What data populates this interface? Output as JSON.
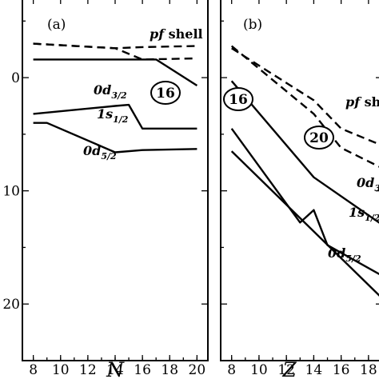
{
  "chart_data": [
    {
      "type": "line",
      "panel_label": "(a)",
      "xlabel": "N",
      "ylabel": "",
      "xlim": [
        7.2,
        20.8
      ],
      "ylim": [
        -7,
        25
      ],
      "y_inverted": true,
      "x_ticks": [
        8,
        10,
        12,
        14,
        16,
        18,
        20
      ],
      "y_ticks": [
        0,
        10,
        20
      ],
      "grid": false,
      "series": [
        {
          "name": "pf shell",
          "style": "dashed",
          "x": [
            8,
            14,
            16,
            20
          ],
          "y": [
            -3.0,
            -2.6,
            -1.6,
            -1.7
          ]
        },
        {
          "name": "pf shell",
          "style": "dashed",
          "x": [
            8,
            14,
            16,
            20
          ],
          "y": [
            -3.0,
            -2.6,
            -2.7,
            -2.8
          ]
        },
        {
          "name": "0d3/2",
          "style": "solid",
          "x": [
            8,
            17,
            20
          ],
          "y": [
            -1.6,
            -1.6,
            0.7
          ]
        },
        {
          "name": "1s1/2",
          "style": "solid",
          "x": [
            8,
            14,
            15,
            16,
            20
          ],
          "y": [
            3.2,
            2.5,
            2.4,
            4.5,
            4.5
          ]
        },
        {
          "name": "0d5/2",
          "style": "solid",
          "x": [
            8,
            9,
            14,
            16,
            20
          ],
          "y": [
            4.0,
            4.0,
            6.6,
            6.4,
            6.3
          ]
        }
      ],
      "annotations": [
        {
          "kind": "label",
          "parts": [
            {
              "t": "pf",
              "style": "italic"
            },
            {
              "t": " shell",
              "style": "normal"
            }
          ]
        },
        {
          "kind": "orbital",
          "main": "0d",
          "sub": "3/2"
        },
        {
          "kind": "orbital",
          "main": "1s",
          "sub": "1/2"
        },
        {
          "kind": "orbital",
          "main": "0d",
          "sub": "5/2"
        },
        {
          "kind": "magic",
          "text": "16"
        }
      ]
    },
    {
      "type": "line",
      "panel_label": "(b)",
      "xlabel": "Z",
      "ylabel": "",
      "xlim": [
        7.2,
        19
      ],
      "ylim": [
        -7,
        25
      ],
      "y_inverted": true,
      "x_ticks": [
        8,
        10,
        12,
        14,
        16,
        18
      ],
      "y_ticks": [
        0,
        10,
        20
      ],
      "grid": false,
      "series": [
        {
          "name": "pf shell",
          "style": "dashed",
          "x": [
            8,
            14,
            16,
            19
          ],
          "y": [
            -2.6,
            2.0,
            4.5,
            6.0
          ]
        },
        {
          "name": "pf shell",
          "style": "dashed",
          "x": [
            8,
            14,
            16,
            19
          ],
          "y": [
            -2.8,
            3.2,
            6.2,
            8.0
          ]
        },
        {
          "name": "0d3/2",
          "style": "solid",
          "x": [
            8,
            14,
            19
          ],
          "y": [
            0.3,
            8.8,
            13.0
          ]
        },
        {
          "name": "1s1/2",
          "style": "solid",
          "x": [
            8,
            13,
            14,
            15,
            19
          ],
          "y": [
            4.5,
            12.8,
            11.7,
            14.8,
            17.5
          ]
        },
        {
          "name": "0d5/2",
          "style": "solid",
          "x": [
            8,
            19
          ],
          "y": [
            6.5,
            19.5
          ]
        }
      ],
      "annotations": [
        {
          "kind": "label",
          "parts": [
            {
              "t": "pf",
              "style": "italic"
            },
            {
              "t": " sh",
              "style": "normal"
            }
          ]
        },
        {
          "kind": "orbital",
          "main": "0d",
          "sub": "3"
        },
        {
          "kind": "orbital",
          "main": "1s",
          "sub": "1/2"
        },
        {
          "kind": "orbital",
          "main": "0d",
          "sub": "5/2"
        },
        {
          "kind": "magic",
          "text": "16"
        },
        {
          "kind": "magic",
          "text": "20"
        }
      ]
    }
  ]
}
